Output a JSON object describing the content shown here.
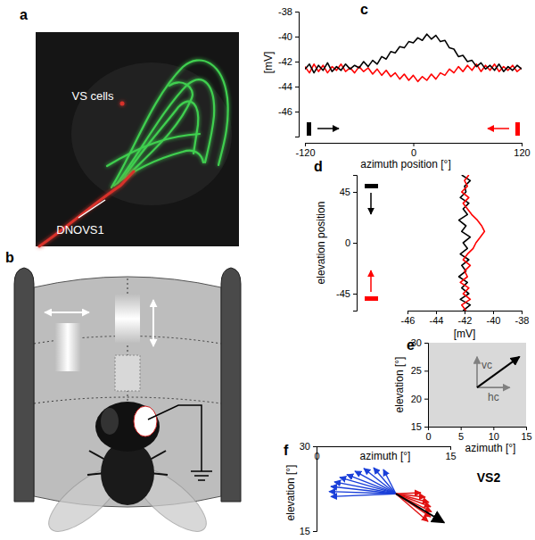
{
  "figure": {
    "panel_labels": [
      "a",
      "b",
      "c",
      "d",
      "e",
      "f"
    ],
    "image_labels": [
      "VS cells",
      "DNOVS1"
    ]
  },
  "chart_data": [
    {
      "type": "line",
      "x_label": "azimuth position [°]",
      "y_label": "[mV]",
      "x": [
        -120,
        -115,
        -110,
        -105,
        -100,
        -95,
        -90,
        -85,
        -80,
        -75,
        -70,
        -65,
        -60,
        -55,
        -50,
        -45,
        -40,
        -35,
        -30,
        -25,
        -20,
        -15,
        -10,
        -5,
        0,
        5,
        10,
        15,
        20,
        25,
        30,
        35,
        40,
        45,
        50,
        55,
        60,
        65,
        70,
        75,
        80,
        85,
        90,
        95,
        100,
        105,
        110,
        115,
        120
      ],
      "series": [
        {
          "color": "#ff0000",
          "values": [
            -42.4,
            -42.9,
            -42.2,
            -42.8,
            -42.3,
            -42.9,
            -42.4,
            -42.7,
            -42.2,
            -42.8,
            -42.5,
            -42.9,
            -42.4,
            -42.8,
            -42.5,
            -43.0,
            -42.6,
            -43.1,
            -42.7,
            -43.2,
            -42.9,
            -43.4,
            -43.0,
            -43.5,
            -43.1,
            -43.6,
            -43.2,
            -43.5,
            -43.0,
            -43.4,
            -42.9,
            -43.1,
            -42.6,
            -42.9,
            -42.4,
            -42.8,
            -42.3,
            -42.7,
            -42.2,
            -42.8,
            -42.3,
            -42.7,
            -42.2,
            -42.8,
            -42.4,
            -42.7,
            -42.3,
            -42.8,
            -42.5
          ]
        },
        {
          "color": "#000000",
          "values": [
            -42.6,
            -42.2,
            -42.9,
            -42.3,
            -42.7,
            -42.1,
            -42.8,
            -42.4,
            -42.7,
            -42.2,
            -42.6,
            -42.3,
            -42.5,
            -42.0,
            -42.4,
            -41.9,
            -42.2,
            -41.6,
            -41.8,
            -41.2,
            -41.3,
            -40.8,
            -40.9,
            -40.4,
            -40.5,
            -40.1,
            -40.3,
            -39.8,
            -40.2,
            -39.9,
            -40.4,
            -40.3,
            -40.9,
            -41.0,
            -41.6,
            -41.5,
            -42.0,
            -41.9,
            -42.4,
            -42.1,
            -42.6,
            -42.3,
            -42.7,
            -42.2,
            -42.8,
            -42.4,
            -42.7,
            -42.3,
            -42.6
          ]
        }
      ],
      "xlim": [
        -120,
        120
      ],
      "xticks": [
        -120,
        0,
        120
      ],
      "ylim": [
        -48,
        -38
      ],
      "yticks": [
        -46,
        -44,
        -42,
        -40,
        -38
      ]
    },
    {
      "type": "line",
      "orientation": "horizontal",
      "x_label": "[mV]",
      "y_label": "elevation position",
      "y": [
        -60,
        -55,
        -50,
        -45,
        -40,
        -35,
        -30,
        -25,
        -20,
        -15,
        -10,
        -5,
        0,
        5,
        10,
        15,
        20,
        25,
        30,
        35,
        40,
        45,
        50,
        55,
        60
      ],
      "series": [
        {
          "color": "#000000",
          "values": [
            -42.1,
            -41.6,
            -42.3,
            -41.7,
            -42.2,
            -41.8,
            -42.4,
            -41.9,
            -42.2,
            -41.7,
            -42.3,
            -41.8,
            -42.1,
            -41.6,
            -42.2,
            -41.9,
            -42.4,
            -41.8,
            -42.1,
            -41.7,
            -42.3,
            -41.9,
            -42.0,
            -41.6,
            -42.2
          ]
        },
        {
          "color": "#ff0000",
          "values": [
            -41.9,
            -42.2,
            -41.6,
            -42.1,
            -41.7,
            -42.3,
            -41.8,
            -42.0,
            -41.6,
            -42.1,
            -41.8,
            -41.4,
            -41.2,
            -40.9,
            -40.6,
            -40.8,
            -41.1,
            -41.5,
            -41.8,
            -42.1,
            -41.7,
            -42.2,
            -41.8,
            -42.0,
            -41.7
          ]
        }
      ],
      "xlim": [
        -46,
        -38
      ],
      "xticks": [
        -46,
        -44,
        -42,
        -40,
        -38
      ],
      "ylim": [
        -60,
        60
      ],
      "yticks": [
        -45,
        0,
        45
      ]
    },
    {
      "type": "vector",
      "x_label": "azimuth [°]",
      "y_label": "elevation [°]",
      "origin": {
        "x": 7.5,
        "y": 22
      },
      "series": [
        {
          "label": "vc",
          "color": "#808080",
          "x": [
            7.5
          ],
          "y": [
            27.5
          ]
        },
        {
          "label": "hc",
          "color": "#808080",
          "x": [
            12.5
          ],
          "y": [
            22
          ]
        },
        {
          "color": "#000000",
          "x": [
            14
          ],
          "y": [
            27.5
          ]
        }
      ],
      "xlim": [
        0,
        15
      ],
      "xticks": [
        0,
        5,
        10,
        15
      ],
      "ylim": [
        15,
        30
      ],
      "yticks": [
        15,
        20,
        25,
        30
      ]
    },
    {
      "type": "vector",
      "title": "VS2",
      "x_label": "azimuth [°]",
      "y_label": "elevation [°]",
      "origin": {
        "x": 8.9,
        "y": 21.6
      },
      "series": [
        {
          "color": "#1a3fd9",
          "x": [
            7.5,
            6.4,
            5.3,
            4.3,
            3.4,
            2.6,
            2.0,
            1.6,
            1.4,
            1.6
          ],
          "y": [
            25.9,
            26.2,
            26.1,
            25.6,
            25.0,
            24.5,
            23.7,
            22.9,
            22.0,
            21.1
          ]
        },
        {
          "color": "#e01010",
          "x": [
            11.7,
            12.2,
            12.6,
            12.8,
            12.9,
            12.8,
            12.5
          ],
          "y": [
            21.8,
            21.0,
            20.1,
            19.3,
            18.4,
            17.5,
            16.7
          ]
        },
        {
          "color": "#000000",
          "x": [
            14.3
          ],
          "y": [
            16.5
          ]
        }
      ],
      "xlim": [
        0,
        15
      ],
      "xticks": [
        0,
        15
      ],
      "ylim": [
        15,
        30
      ],
      "yticks": [
        15,
        30
      ]
    }
  ]
}
